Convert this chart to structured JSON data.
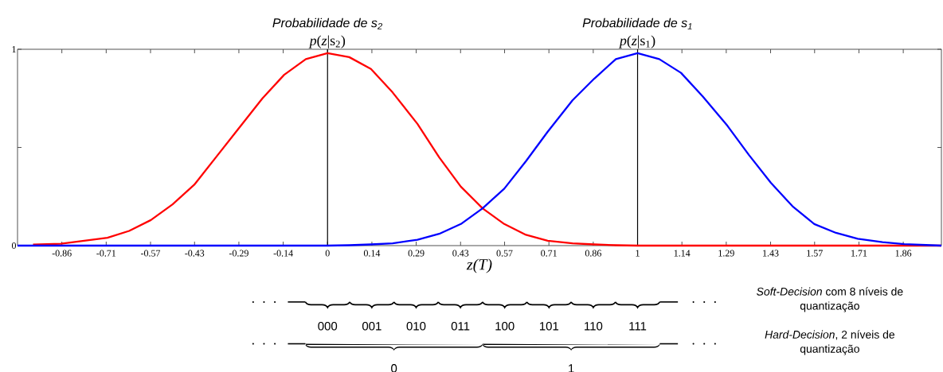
{
  "chart_data": {
    "type": "line",
    "xlabel": "z(T)",
    "xlim": [
      -1,
      1.98
    ],
    "ylim": [
      0,
      1
    ],
    "xticks": [
      {
        "value": -0.857,
        "label": "-0.86"
      },
      {
        "value": -0.714,
        "label": "-0.71"
      },
      {
        "value": -0.571,
        "label": "-0.57"
      },
      {
        "value": -0.429,
        "label": "-0.43"
      },
      {
        "value": -0.286,
        "label": "-0.29"
      },
      {
        "value": -0.143,
        "label": "-0.14"
      },
      0,
      {
        "value": 0.143,
        "label": "0.14"
      },
      {
        "value": 0.286,
        "label": "0.29"
      },
      {
        "value": 0.429,
        "label": "0.43"
      },
      {
        "value": 0.571,
        "label": "0.57"
      },
      {
        "value": 0.714,
        "label": "0.71"
      },
      {
        "value": 0.857,
        "label": "0.86"
      },
      1,
      {
        "value": 1.143,
        "label": "1.14"
      },
      {
        "value": 1.286,
        "label": "1.29"
      },
      {
        "value": 1.429,
        "label": "1.43"
      },
      {
        "value": 1.571,
        "label": "1.57"
      },
      {
        "value": 1.714,
        "label": "1.71"
      },
      {
        "value": 1.857,
        "label": "1.86"
      }
    ],
    "yticks": [
      0,
      {
        "value": 0.5,
        "label": null
      },
      1
    ],
    "series": [
      {
        "color": "#ff0000",
        "x": [
          -0.95,
          -0.86,
          -0.71,
          -0.64,
          -0.57,
          -0.5,
          -0.43,
          -0.36,
          -0.29,
          -0.21,
          -0.14,
          -0.07,
          0,
          0.07,
          0.14,
          0.21,
          0.29,
          0.36,
          0.43,
          0.5,
          0.57,
          0.64,
          0.71,
          0.79,
          0.86,
          0.93,
          1,
          1.98
        ],
        "values": [
          0.005,
          0.01,
          0.04,
          0.075,
          0.13,
          0.21,
          0.31,
          0.45,
          0.59,
          0.75,
          0.87,
          0.95,
          0.98,
          0.96,
          0.9,
          0.78,
          0.62,
          0.45,
          0.3,
          0.19,
          0.11,
          0.055,
          0.025,
          0.012,
          0.006,
          0.002,
          0,
          0
        ]
      },
      {
        "color": "#0000ff",
        "x": [
          -1,
          0,
          0.07,
          0.14,
          0.21,
          0.29,
          0.36,
          0.43,
          0.5,
          0.57,
          0.64,
          0.71,
          0.79,
          0.86,
          0.93,
          1,
          1.07,
          1.14,
          1.21,
          1.29,
          1.36,
          1.43,
          1.5,
          1.57,
          1.64,
          1.71,
          1.79,
          1.86,
          1.93,
          1.98
        ],
        "values": [
          0,
          0,
          0.002,
          0.006,
          0.012,
          0.03,
          0.06,
          0.11,
          0.19,
          0.29,
          0.43,
          0.58,
          0.74,
          0.85,
          0.95,
          0.98,
          0.95,
          0.88,
          0.76,
          0.61,
          0.46,
          0.32,
          0.2,
          0.11,
          0.065,
          0.035,
          0.018,
          0.008,
          0.003,
          0
        ]
      }
    ],
    "ref_lines": [
      {
        "axis": "x",
        "value": 0,
        "label": "*p*(*z*|s$_{2}$)",
        "color": "#000000"
      },
      {
        "axis": "x",
        "value": 1,
        "label": "*p*(*z*|s$_{1}$)",
        "color": "#000000"
      }
    ],
    "annotations": [
      {
        "text": "Probabilidade de s$_{2}$",
        "x": 0,
        "y": 1
      },
      {
        "text": "Probabilidade de s$_{1}$",
        "x": 1,
        "y": 1
      },
      "*Soft-Decision* com 8 níveis de quantização",
      "000",
      "001",
      "010",
      "011",
      "100",
      "101",
      "110",
      "111",
      "*Hard-Decision*, 2 níveis de quantização",
      "0",
      "1"
    ]
  }
}
